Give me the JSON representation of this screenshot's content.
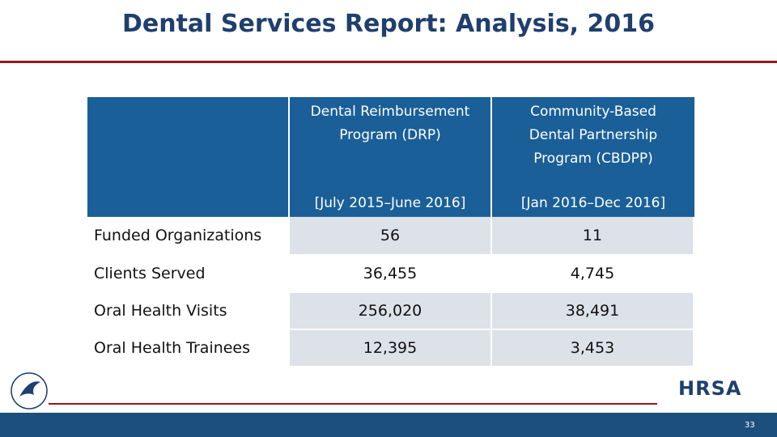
{
  "header": {
    "title": "Dental Services Report: Analysis, 2016"
  },
  "table": {
    "columns": [
      {
        "name": "Dental Reimbursement Program (DRP)",
        "period": "[July 2015–June 2016]"
      },
      {
        "name": "Community-Based Dental Partnership Program (CBDPP)",
        "period": "[Jan 2016–Dec 2016]"
      }
    ],
    "rows": [
      [
        "Funded Organizations",
        "56",
        "11"
      ],
      [
        "Clients Served",
        "36,455",
        "4,745"
      ],
      [
        "Oral Health Visits",
        "256,020",
        "38,491"
      ],
      [
        "Oral Health Trainees",
        "12,395",
        "3,453"
      ]
    ]
  },
  "footer": {
    "logo": "HRSA",
    "page_number": "33"
  }
}
